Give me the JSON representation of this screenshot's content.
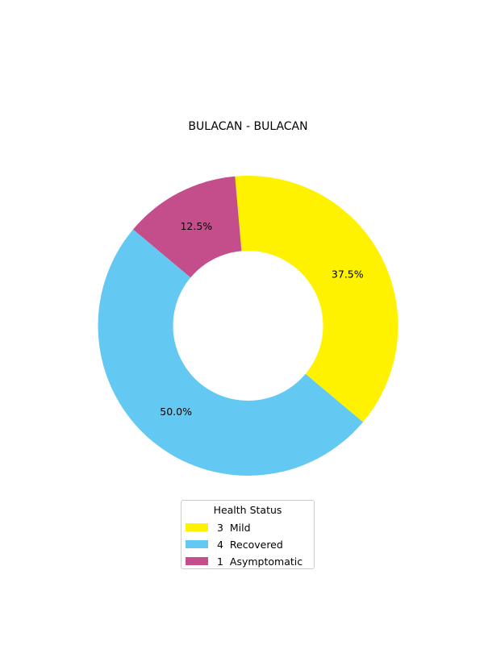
{
  "chart_data": {
    "type": "pie",
    "variant": "donut",
    "title": "BULACAN - BULACAN",
    "legend_title": "Health Status",
    "legend_placement": "bottom-center",
    "slices": [
      {
        "label": "Mild",
        "count": 3,
        "percent": 37.5,
        "percent_label": "37.5%",
        "legend_label": "3  Mild",
        "color": "#fff200"
      },
      {
        "label": "Recovered",
        "count": 4,
        "percent": 50.0,
        "percent_label": "50.0%",
        "legend_label": "4  Recovered",
        "color": "#63c9f2"
      },
      {
        "label": "Asymptomatic",
        "count": 1,
        "percent": 12.5,
        "percent_label": "12.5%",
        "legend_label": "1  Asymptomatic",
        "color": "#c44d8b"
      }
    ],
    "start_angle_deg": -5,
    "direction": "clockwise",
    "grid": false
  }
}
